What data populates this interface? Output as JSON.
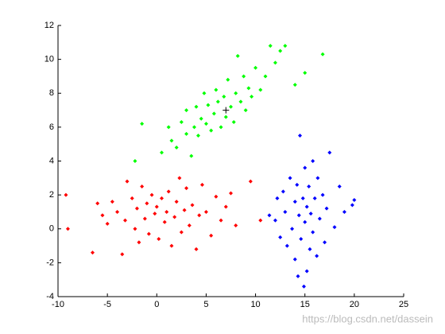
{
  "chart_data": {
    "type": "scatter",
    "xlim": [
      -10,
      25
    ],
    "xticks": [
      -10,
      -5,
      0,
      5,
      10,
      15,
      20,
      25
    ],
    "ylim": [
      -4,
      12
    ],
    "yticks": [
      -4,
      -2,
      0,
      2,
      4,
      6,
      8,
      10,
      12
    ],
    "watermark": "https://blog.csdn.net/dassein",
    "series": [
      {
        "color": "#ff0000",
        "marker": "diamond",
        "x": [
          -9.2,
          -9,
          -6.5,
          -6,
          -5.5,
          -5,
          -4.5,
          -4,
          -3.5,
          -3.2,
          -3,
          -2.5,
          -2.2,
          -2,
          -1.8,
          -1.5,
          -1.2,
          -1,
          -0.8,
          -0.5,
          -0.2,
          0,
          0.2,
          0.5,
          0.8,
          1,
          1.2,
          1.5,
          1.8,
          2,
          2.3,
          2.5,
          2.8,
          3,
          3.3,
          3.6,
          4,
          4.3,
          4.6,
          5,
          5.5,
          6,
          6.5,
          7,
          7.5,
          8,
          9.5,
          10.5
        ],
        "y": [
          2.0,
          0.0,
          -1.4,
          1.5,
          0.8,
          0.3,
          1.6,
          1.0,
          -1.5,
          0.5,
          2.8,
          1.8,
          0.0,
          1.2,
          -0.8,
          2.5,
          0.6,
          1.5,
          -0.3,
          2.0,
          0.9,
          1.3,
          -0.6,
          1.8,
          0.4,
          1.0,
          2.2,
          -1.0,
          0.7,
          1.6,
          3.0,
          -0.2,
          1.1,
          2.4,
          0.2,
          1.4,
          -1.2,
          0.8,
          2.6,
          1.0,
          -0.4,
          1.9,
          0.5,
          1.3,
          2.1,
          0.2,
          2.8,
          0.5
        ]
      },
      {
        "color": "#00ff00",
        "marker": "diamond",
        "x": [
          -1.5,
          -2.2,
          0.5,
          1.2,
          1.5,
          2,
          2.5,
          3,
          3,
          3.5,
          3.8,
          4,
          4.2,
          4.5,
          4.8,
          5,
          5.2,
          5.5,
          5.8,
          6,
          6.2,
          6.5,
          6.8,
          7,
          7.2,
          7.5,
          7.8,
          8,
          8.2,
          8.5,
          8.8,
          9,
          9.3,
          9.6,
          10,
          10.5,
          11,
          11.5,
          12,
          12.5,
          13,
          14,
          15,
          16.8
        ],
        "y": [
          6.2,
          4.0,
          4.5,
          6.0,
          5.2,
          4.8,
          6.3,
          5.6,
          7.0,
          4.3,
          6.0,
          7.2,
          5.5,
          6.5,
          8.0,
          6.2,
          7.3,
          5.8,
          6.8,
          8.2,
          7.5,
          6.0,
          7.8,
          6.6,
          8.8,
          7.2,
          6.3,
          8.0,
          10.2,
          7.5,
          9.0,
          7.0,
          8.3,
          7.8,
          9.5,
          8.2,
          9.0,
          10.8,
          9.8,
          10.5,
          10.8,
          8.5,
          9.2,
          10.3
        ]
      },
      {
        "color": "#0000ff",
        "marker": "diamond",
        "x": [
          12,
          12.2,
          12.5,
          12.8,
          13,
          13.2,
          13.5,
          13.7,
          14,
          14,
          14.2,
          14.4,
          14.6,
          14.8,
          15,
          15,
          15.2,
          15.2,
          15.4,
          15.5,
          15.6,
          15.8,
          15.8,
          16,
          16.2,
          16.3,
          16.5,
          16.8,
          17,
          17.2,
          17.5,
          18,
          18.5,
          19,
          19.8,
          20,
          14.5,
          14.9,
          14.3,
          11.4
        ],
        "y": [
          0.5,
          1.8,
          -0.5,
          2.2,
          1.0,
          -1.0,
          3.0,
          0.0,
          1.6,
          -1.8,
          2.6,
          0.8,
          -0.6,
          1.8,
          3.6,
          0.4,
          -2.5,
          1.3,
          2.5,
          -1.2,
          0.9,
          4.0,
          -0.2,
          1.8,
          -1.6,
          3.0,
          0.6,
          2.0,
          -0.8,
          1.2,
          4.5,
          0.1,
          2.5,
          1.0,
          1.4,
          1.7,
          5.5,
          -3.4,
          -2.8,
          0.8
        ]
      },
      {
        "color": "#000000",
        "marker": "plus",
        "x": [
          7
        ],
        "y": [
          7
        ]
      }
    ]
  }
}
